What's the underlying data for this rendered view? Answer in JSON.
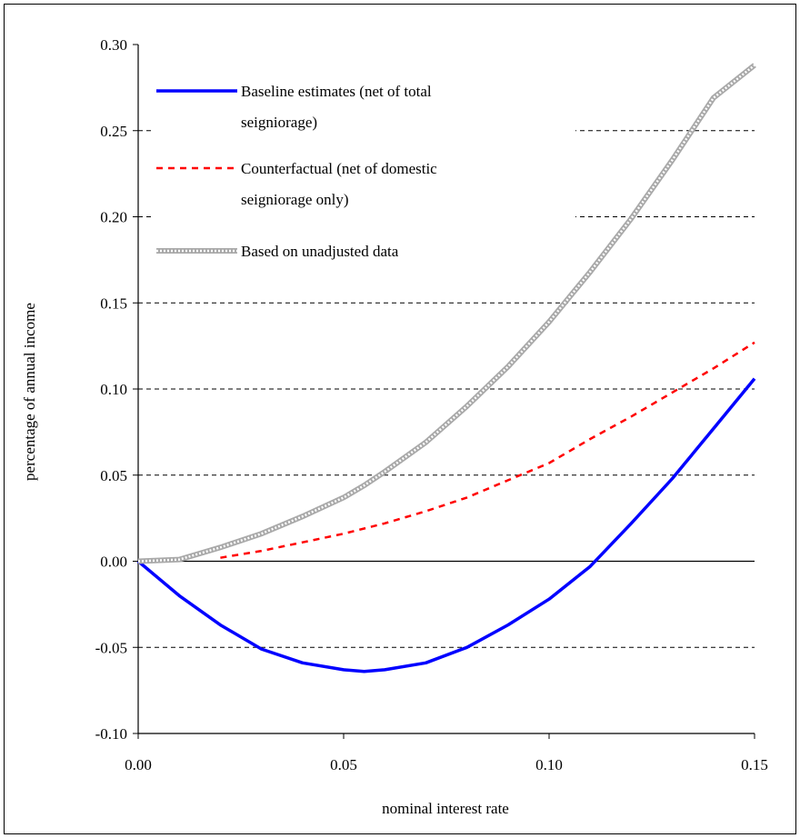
{
  "chart_data": {
    "type": "line",
    "xlabel": "nominal interest rate",
    "ylabel": "percentage of annual income",
    "xlim": [
      0,
      0.15
    ],
    "ylim": [
      -0.1,
      0.3
    ],
    "x_ticks": [
      "0.00",
      "0.05",
      "0.10",
      "0.15"
    ],
    "y_ticks": [
      "-0.10",
      "-0.05",
      "0.00",
      "0.05",
      "0.10",
      "0.15",
      "0.20",
      "0.25",
      "0.30"
    ],
    "grid": "horizontal dashed",
    "legend_position": "top-left",
    "x": [
      0.0,
      0.01,
      0.02,
      0.03,
      0.04,
      0.05,
      0.055,
      0.06,
      0.07,
      0.08,
      0.09,
      0.1,
      0.11,
      0.12,
      0.13,
      0.14,
      0.15
    ],
    "series": [
      {
        "name_lines": [
          "Baseline estimates (net of total",
          "seigniorage)"
        ],
        "color": "#0000ff",
        "style": "solid",
        "values": [
          0.0,
          -0.02,
          -0.037,
          -0.051,
          -0.059,
          -0.063,
          -0.064,
          -0.063,
          -0.059,
          -0.05,
          -0.037,
          -0.022,
          -0.003,
          0.022,
          0.048,
          0.077,
          0.106
        ]
      },
      {
        "name_lines": [
          "Counterfactual (net of domestic",
          "seigniorage only)"
        ],
        "color": "#ff0000",
        "style": "dashed",
        "values": [
          null,
          null,
          0.002,
          0.006,
          0.011,
          0.016,
          0.019,
          0.022,
          0.029,
          0.037,
          0.047,
          0.057,
          0.071,
          0.084,
          0.098,
          0.112,
          0.127
        ]
      },
      {
        "name_lines": [
          "Based on unadjusted data"
        ],
        "color": "#a9a9a9",
        "style": "beaded",
        "values": [
          0.0,
          0.001,
          0.008,
          0.016,
          0.026,
          0.037,
          0.044,
          0.052,
          0.069,
          0.09,
          0.113,
          0.139,
          0.168,
          0.199,
          0.233,
          0.269,
          0.288
        ]
      }
    ]
  }
}
